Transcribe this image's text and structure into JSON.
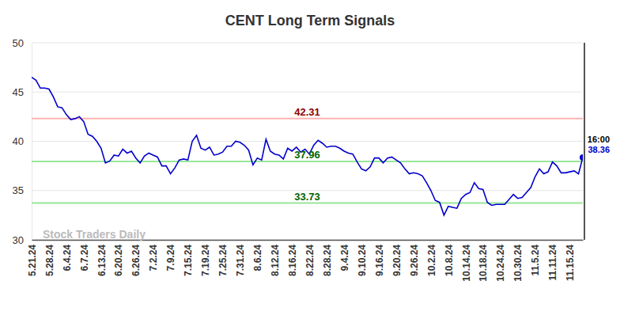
{
  "chart_data": {
    "type": "line",
    "title": "CENT Long Term Signals",
    "categories": [
      "5.21.24",
      null,
      null,
      null,
      "5.28.24",
      null,
      null,
      null,
      "6.4.24",
      null,
      null,
      null,
      "6.7.24",
      null,
      null,
      null,
      "6.13.24",
      null,
      null,
      null,
      "6.20.24",
      null,
      null,
      null,
      "6.26.24",
      null,
      null,
      null,
      "7.2.24",
      null,
      null,
      null,
      "7.9.24",
      null,
      null,
      null,
      "7.15.24",
      null,
      null,
      null,
      "7.19.24",
      null,
      null,
      null,
      "7.25.24",
      null,
      null,
      null,
      "7.31.24",
      null,
      null,
      null,
      "8.6.24",
      null,
      null,
      null,
      "8.12.24",
      null,
      null,
      null,
      "8.16.24",
      null,
      null,
      null,
      "8.22.24",
      null,
      null,
      null,
      "8.28.24",
      null,
      null,
      null,
      "9.4.24",
      null,
      null,
      null,
      "9.10.24",
      null,
      null,
      null,
      "9.16.24",
      null,
      null,
      null,
      "9.20.24",
      null,
      null,
      null,
      "9.26.24",
      null,
      null,
      null,
      "10.2.24",
      null,
      null,
      null,
      "10.8.24",
      null,
      null,
      null,
      "10.14.24",
      null,
      null,
      null,
      "10.18.24",
      null,
      null,
      null,
      "10.24.24",
      null,
      null,
      null,
      "10.30.24",
      null,
      null,
      null,
      "11.5.24",
      null,
      null,
      null,
      "11.11.24",
      null,
      null,
      null,
      "11.15.24",
      null,
      null,
      null
    ],
    "series": [
      {
        "name": "CENT",
        "color": "#0000cc",
        "values": [
          46.5,
          46.2,
          45.4,
          45.4,
          45.3,
          44.5,
          43.5,
          43.4,
          42.7,
          42.2,
          42.3,
          42.5,
          42.0,
          40.7,
          40.5,
          40.0,
          39.3,
          37.8,
          38.0,
          38.6,
          38.5,
          39.2,
          38.8,
          39.0,
          38.3,
          37.8,
          38.5,
          38.8,
          38.6,
          38.4,
          37.5,
          37.5,
          36.7,
          37.3,
          38.1,
          38.2,
          38.1,
          40.0,
          40.6,
          39.3,
          39.1,
          39.4,
          38.6,
          38.7,
          38.9,
          39.5,
          39.5,
          40.0,
          39.9,
          39.6,
          39.1,
          37.6,
          38.3,
          38.1,
          40.2,
          39.0,
          38.7,
          38.6,
          38.2,
          39.3,
          39.0,
          39.4,
          38.9,
          39.2,
          38.7,
          39.6,
          40.1,
          39.8,
          39.4,
          39.5,
          39.5,
          39.3,
          39.0,
          38.8,
          38.7,
          37.9,
          37.2,
          37.0,
          37.4,
          38.3,
          38.3,
          37.8,
          38.3,
          38.4,
          38.1,
          37.8,
          37.2,
          36.7,
          36.8,
          36.7,
          36.5,
          35.8,
          35.0,
          34.0,
          33.8,
          32.5,
          33.4,
          33.3,
          33.2,
          34.2,
          34.6,
          34.8,
          35.8,
          35.2,
          35.1,
          33.8,
          33.5,
          33.6,
          33.6,
          33.6,
          34.1,
          34.6,
          34.2,
          34.3,
          34.8,
          35.3,
          36.4,
          37.2,
          36.7,
          36.9,
          37.9,
          37.5,
          36.8,
          36.8,
          36.9,
          37.0,
          36.7,
          38.36
        ]
      }
    ],
    "ylim": [
      30,
      50
    ],
    "yticks": [
      30,
      35,
      40,
      45,
      50
    ],
    "grid": true,
    "reference_lines": [
      {
        "value": 42.31,
        "color": "#ffb3b3",
        "text_color": "#8b0000"
      },
      {
        "value": 37.96,
        "color": "#99e699",
        "text_color": "#006400"
      },
      {
        "value": 33.73,
        "color": "#99e699",
        "text_color": "#006400"
      }
    ],
    "end_marker": {
      "label": "16:00"
    },
    "watermark": "Stock Traders Daily"
  }
}
